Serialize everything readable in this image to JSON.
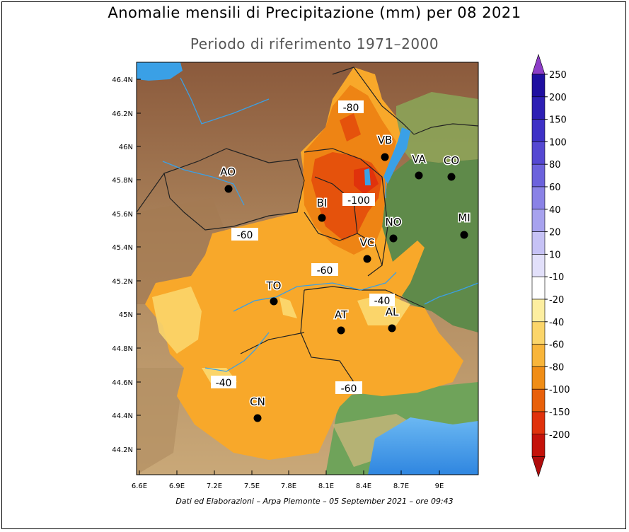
{
  "title": "Anomalie mensili di Precipitazione (mm) per 08 2021",
  "subtitle": "Periodo di riferimento 1971–2000",
  "credits": "Dati ed Elaborazioni – Arpa Piemonte – 05 September 2021 – ore 09:43",
  "axes": {
    "lat_ticks": [
      "46.4N",
      "46.2N",
      "46N",
      "45.8N",
      "45.6N",
      "45.4N",
      "45.2N",
      "45N",
      "44.8N",
      "44.6N",
      "44.4N",
      "44.2N"
    ],
    "lon_ticks": [
      "6.6E",
      "6.9E",
      "7.2E",
      "7.5E",
      "7.8E",
      "8.1E",
      "8.4E",
      "8.7E",
      "9E"
    ]
  },
  "cities": [
    {
      "name": "AO"
    },
    {
      "name": "VB"
    },
    {
      "name": "VA"
    },
    {
      "name": "CO"
    },
    {
      "name": "BI"
    },
    {
      "name": "NO"
    },
    {
      "name": "MI"
    },
    {
      "name": "VC"
    },
    {
      "name": "TO"
    },
    {
      "name": "AT"
    },
    {
      "name": "AL"
    },
    {
      "name": "CN"
    }
  ],
  "contour_labels": [
    "-80",
    "-100",
    "-60",
    "-60",
    "-40",
    "-40",
    "-60"
  ],
  "legend": {
    "levels": [
      "250",
      "200",
      "150",
      "100",
      "80",
      "60",
      "40",
      "20",
      "10",
      "-10",
      "-20",
      "-40",
      "-60",
      "-80",
      "-100",
      "-150",
      "-200"
    ],
    "colors": [
      "#1f0fa0",
      "#2d1fb4",
      "#3e31c6",
      "#5548d2",
      "#6c62dc",
      "#8a82e6",
      "#a7a2ee",
      "#c6c2f5",
      "#e2e0fa",
      "#ffffff",
      "#fdeea0",
      "#fbd56a",
      "#f8b53a",
      "#f08d16",
      "#e8600a",
      "#e0320c",
      "#c4120a"
    ],
    "top_arrow_color": "#8d3dc8",
    "bottom_arrow_color": "#b00c0c"
  },
  "colors": {
    "anomaly_minus40": "#fbd56a",
    "anomaly_minus60": "#f8a82a",
    "anomaly_minus80": "#ee8414",
    "anomaly_minus100": "#e5520c",
    "outside_lombardy": "#5f8a4a",
    "water": "#3aa0e6"
  }
}
